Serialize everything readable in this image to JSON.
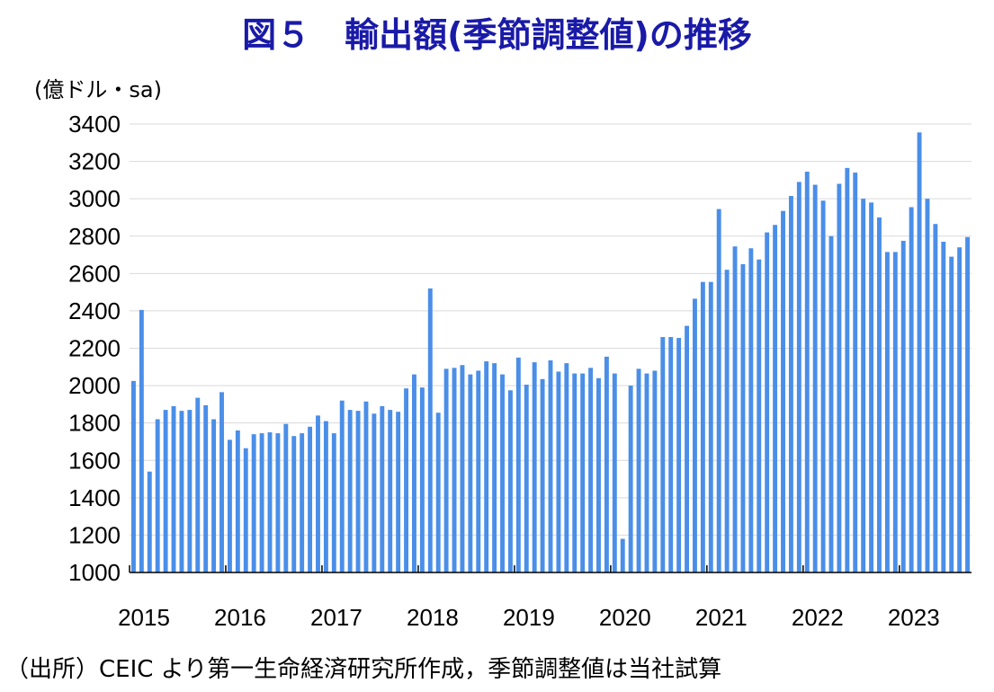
{
  "title": "図５　輸出額(季節調整値)の推移",
  "footnote": "（出所）CEIC より第一生命経済研究所作成，季節調整値は当社試算",
  "chart_data": {
    "type": "bar",
    "unit_label": "(億ドル・sa)",
    "bar_color": "#4a8ee8",
    "ylim": [
      1000,
      3400
    ],
    "yticks": [
      1000,
      1200,
      1400,
      1600,
      1800,
      2000,
      2200,
      2400,
      2600,
      2800,
      3000,
      3200,
      3400
    ],
    "grid": true,
    "year_labels": [
      "2015",
      "2016",
      "2017",
      "2018",
      "2019",
      "2020",
      "2021",
      "2022",
      "2023"
    ],
    "series": [
      {
        "start": "2015-01",
        "values": [
          2025,
          2405,
          1540,
          1820,
          1870,
          1890,
          1865,
          1870,
          1935,
          1895,
          1820,
          1965,
          1710,
          1760,
          1665,
          1740,
          1745,
          1750,
          1745,
          1795,
          1730,
          1745,
          1780,
          1840,
          1810,
          1745,
          1920,
          1870,
          1865,
          1915,
          1850,
          1890,
          1870,
          1860,
          1985,
          2060,
          1990,
          2520,
          1855,
          2090,
          2095,
          2110,
          2060,
          2080,
          2130,
          2120,
          2060,
          1975,
          2150,
          2005,
          2125,
          2035,
          2135,
          2075,
          2120,
          2065,
          2065,
          2095,
          2040,
          2155,
          2065,
          1180,
          2000,
          2090,
          2065,
          2080,
          2260,
          2260,
          2255,
          2320,
          2465,
          2555,
          2555,
          2945,
          2620,
          2745,
          2650,
          2735,
          2675,
          2820,
          2860,
          2935,
          3015,
          3090,
          3145,
          3075,
          2990,
          2800,
          3080,
          3165,
          3140,
          3000,
          2980,
          2900,
          2715,
          2715,
          2775,
          2955,
          3355,
          3000,
          2865,
          2770,
          2690,
          2740,
          2795
        ]
      }
    ]
  }
}
